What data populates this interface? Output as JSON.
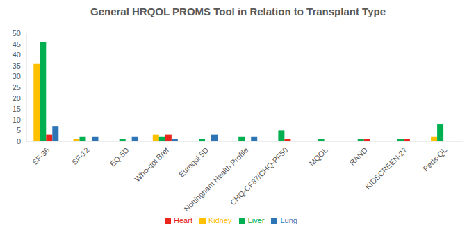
{
  "chart_data": {
    "type": "bar",
    "title": "General HRQOL PROMS Tool in Relation to Transplant Type",
    "categories": [
      "SF-36",
      "SF-12",
      "EQ-5D",
      "Who-qol Bref",
      "Euroqol 5D",
      "Nottingham Health Profile",
      "CHQ-CF87/CHQ-PF50",
      "MQOL",
      "RAND",
      "KIDSCREEN-27",
      "Peds-QL"
    ],
    "series": [
      {
        "name": "Kidney",
        "color": "#FFC000",
        "values": [
          36,
          1,
          0,
          3,
          0,
          0,
          0,
          0,
          0,
          0,
          2
        ]
      },
      {
        "name": "Liver",
        "color": "#00B050",
        "values": [
          46,
          2,
          1,
          2,
          1,
          2,
          5,
          1,
          1,
          1,
          8
        ]
      },
      {
        "name": "Heart",
        "color": "#E8261B",
        "values": [
          3,
          0,
          0,
          3,
          0,
          0,
          1,
          0,
          1,
          1,
          0
        ]
      },
      {
        "name": "Lung",
        "color": "#2E75B6",
        "values": [
          7,
          2,
          2,
          1,
          3,
          2,
          0,
          0,
          0,
          0,
          0
        ]
      }
    ],
    "ylim": [
      0,
      50
    ],
    "yticks": [
      0,
      5,
      10,
      15,
      20,
      25,
      30,
      35,
      40,
      45,
      50
    ],
    "grid": false,
    "legend": "bottom"
  }
}
